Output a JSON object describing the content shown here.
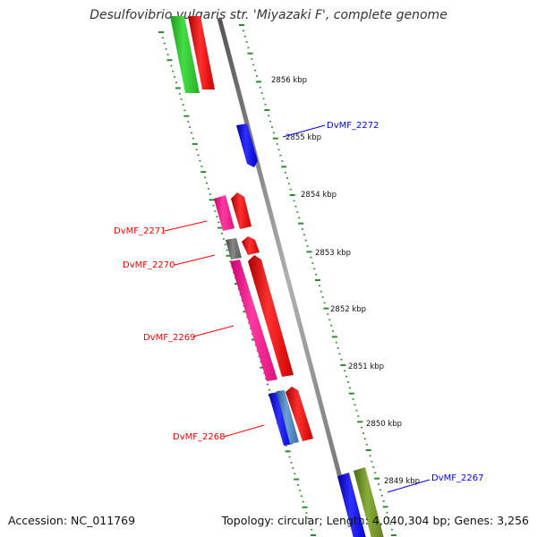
{
  "header": {
    "title": "Desulfovibrio vulgaris str. 'Miyazaki F', complete genome"
  },
  "footer": {
    "accession": "Accession: NC_011769",
    "summary": "Topology: circular; Length: 4,040,304 bp; Genes: 3,256"
  },
  "scale": {
    "unit": "kbp",
    "ticks": [
      {
        "label": "2856 kbp",
        "value": 2856
      },
      {
        "label": "2855 kbp",
        "value": 2855
      },
      {
        "label": "2854 kbp",
        "value": 2854
      },
      {
        "label": "2853 kbp",
        "value": 2853
      },
      {
        "label": "2852 kbp",
        "value": 2852
      },
      {
        "label": "2851 kbp",
        "value": 2851
      },
      {
        "label": "2850 kbp",
        "value": 2850
      },
      {
        "label": "2849 kbp",
        "value": 2849
      }
    ]
  },
  "genes": [
    {
      "label": "DvMF_2272",
      "color": "#0000ff"
    },
    {
      "label": "DvMF_2271",
      "color": "#ff0000"
    },
    {
      "label": "DvMF_2270",
      "color": "#ff0000"
    },
    {
      "label": "DvMF_2269",
      "color": "#ff0000"
    },
    {
      "label": "DvMF_2268",
      "color": "#ff0000"
    },
    {
      "label": "DvMF_2267",
      "color": "#0000ff"
    }
  ],
  "colors": {
    "backbone": "#888888",
    "ticks": "#2e8b2e",
    "cds_forward": "#ff0000",
    "cds_reverse": "#0000ff",
    "rna": "#ff3399",
    "other": "#666666",
    "green_feature": "#33cc33",
    "olive_feature": "#6b8e23",
    "steelblue_feature": "#4682b4"
  }
}
